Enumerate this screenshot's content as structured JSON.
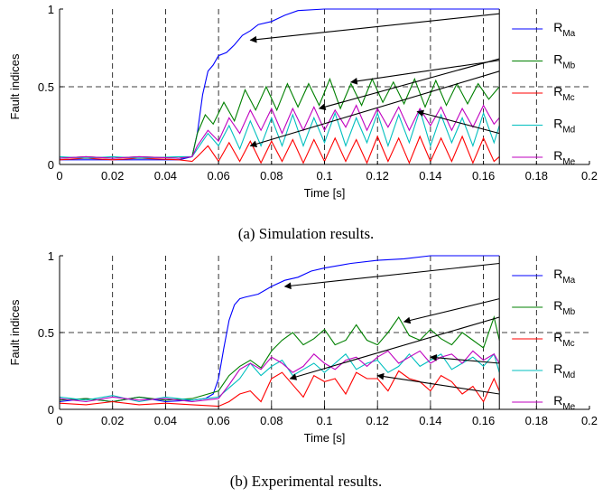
{
  "chart_data": [
    {
      "type": "line",
      "caption": "(a) Simulation results.",
      "xlabel": "Time [s]",
      "ylabel": "Fault indices",
      "xlim": [
        0,
        0.2
      ],
      "ylim": [
        0,
        1
      ],
      "xticks": [
        "0",
        "0.02",
        "0.04",
        "0.06",
        "0.08",
        "0.1",
        "0.12",
        "0.14",
        "0.16",
        "0.18",
        "0.2"
      ],
      "yticks": [
        "0",
        "0.5",
        "1"
      ],
      "grid": "dashed",
      "legend_position": "right",
      "data_end_x": 0.166,
      "series": [
        {
          "name": "R",
          "sub": "Ma",
          "color": "#0000ff",
          "x": [
            0,
            0.01,
            0.02,
            0.03,
            0.045,
            0.05,
            0.052,
            0.054,
            0.056,
            0.058,
            0.06,
            0.063,
            0.066,
            0.069,
            0.072,
            0.075,
            0.08,
            0.085,
            0.09,
            0.1,
            0.166
          ],
          "y": [
            0.03,
            0.03,
            0.03,
            0.03,
            0.03,
            0.05,
            0.2,
            0.45,
            0.6,
            0.64,
            0.7,
            0.72,
            0.77,
            0.83,
            0.86,
            0.9,
            0.92,
            0.96,
            0.99,
            1.0,
            1.0
          ]
        },
        {
          "name": "R",
          "sub": "Mb",
          "color": "#008000",
          "x": [
            0,
            0.01,
            0.02,
            0.03,
            0.045,
            0.05,
            0.052,
            0.055,
            0.058,
            0.062,
            0.066,
            0.07,
            0.074,
            0.078,
            0.082,
            0.086,
            0.09,
            0.094,
            0.098,
            0.102,
            0.106,
            0.11,
            0.114,
            0.118,
            0.122,
            0.126,
            0.13,
            0.134,
            0.138,
            0.142,
            0.146,
            0.15,
            0.154,
            0.158,
            0.162,
            0.166
          ],
          "y": [
            0.04,
            0.05,
            0.04,
            0.05,
            0.04,
            0.05,
            0.2,
            0.32,
            0.26,
            0.4,
            0.28,
            0.48,
            0.35,
            0.5,
            0.35,
            0.52,
            0.37,
            0.52,
            0.38,
            0.55,
            0.36,
            0.52,
            0.38,
            0.55,
            0.4,
            0.53,
            0.39,
            0.55,
            0.37,
            0.54,
            0.38,
            0.52,
            0.39,
            0.52,
            0.42,
            0.5
          ]
        },
        {
          "name": "R",
          "sub": "Mc",
          "color": "#ff0000",
          "x": [
            0,
            0.01,
            0.02,
            0.03,
            0.045,
            0.05,
            0.052,
            0.056,
            0.06,
            0.064,
            0.068,
            0.072,
            0.076,
            0.08,
            0.084,
            0.088,
            0.092,
            0.096,
            0.1,
            0.104,
            0.108,
            0.112,
            0.116,
            0.12,
            0.124,
            0.128,
            0.132,
            0.136,
            0.14,
            0.144,
            0.148,
            0.152,
            0.156,
            0.16,
            0.164,
            0.166
          ],
          "y": [
            0.03,
            0.04,
            0.03,
            0.04,
            0.03,
            0.02,
            0.05,
            0.12,
            0.02,
            0.14,
            0.02,
            0.15,
            0.01,
            0.15,
            0.02,
            0.16,
            0.01,
            0.16,
            0.02,
            0.17,
            0.02,
            0.16,
            0.01,
            0.18,
            0.02,
            0.17,
            0.01,
            0.18,
            0.02,
            0.17,
            0.02,
            0.18,
            0.01,
            0.17,
            0.02,
            0.05
          ]
        },
        {
          "name": "R",
          "sub": "Md",
          "color": "#00bfbf",
          "x": [
            0,
            0.01,
            0.02,
            0.03,
            0.045,
            0.05,
            0.052,
            0.056,
            0.06,
            0.064,
            0.068,
            0.072,
            0.076,
            0.08,
            0.084,
            0.088,
            0.092,
            0.096,
            0.1,
            0.104,
            0.108,
            0.112,
            0.116,
            0.12,
            0.124,
            0.128,
            0.132,
            0.136,
            0.14,
            0.144,
            0.148,
            0.152,
            0.156,
            0.16,
            0.164,
            0.166
          ],
          "y": [
            0.05,
            0.04,
            0.05,
            0.04,
            0.05,
            0.05,
            0.1,
            0.2,
            0.12,
            0.25,
            0.1,
            0.28,
            0.12,
            0.3,
            0.12,
            0.32,
            0.12,
            0.3,
            0.14,
            0.33,
            0.12,
            0.3,
            0.14,
            0.33,
            0.12,
            0.32,
            0.14,
            0.35,
            0.12,
            0.32,
            0.14,
            0.3,
            0.12,
            0.33,
            0.14,
            0.25
          ]
        },
        {
          "name": "R",
          "sub": "Me",
          "color": "#bf00bf",
          "x": [
            0,
            0.01,
            0.02,
            0.03,
            0.045,
            0.05,
            0.052,
            0.056,
            0.06,
            0.064,
            0.068,
            0.072,
            0.076,
            0.08,
            0.084,
            0.088,
            0.092,
            0.096,
            0.1,
            0.104,
            0.108,
            0.112,
            0.116,
            0.12,
            0.124,
            0.128,
            0.132,
            0.136,
            0.14,
            0.144,
            0.148,
            0.152,
            0.156,
            0.16,
            0.164,
            0.166
          ],
          "y": [
            0.04,
            0.05,
            0.04,
            0.05,
            0.04,
            0.05,
            0.12,
            0.22,
            0.15,
            0.3,
            0.2,
            0.35,
            0.22,
            0.36,
            0.2,
            0.36,
            0.22,
            0.37,
            0.22,
            0.35,
            0.24,
            0.38,
            0.22,
            0.36,
            0.24,
            0.37,
            0.22,
            0.36,
            0.25,
            0.37,
            0.22,
            0.36,
            0.24,
            0.38,
            0.26,
            0.3
          ]
        }
      ],
      "annotations": [
        {
          "from": [
            0.166,
            0.97
          ],
          "to": [
            0.072,
            0.8
          ]
        },
        {
          "from": [
            0.166,
            0.67
          ],
          "to": [
            0.11,
            0.53
          ]
        },
        {
          "from": [
            0.166,
            0.6
          ],
          "to": [
            0.072,
            0.12
          ]
        },
        {
          "from": [
            0.166,
            0.2
          ],
          "to": [
            0.135,
            0.34
          ]
        },
        {
          "from": [
            0.166,
            0.68
          ],
          "to": [
            0.098,
            0.36
          ]
        }
      ]
    },
    {
      "type": "line",
      "caption": "(b) Experimental results.",
      "xlabel": "Time [s]",
      "ylabel": "Fault indices",
      "xlim": [
        0,
        0.2
      ],
      "ylim": [
        0,
        1
      ],
      "xticks": [
        "0",
        "0.02",
        "0.04",
        "0.06",
        "0.08",
        "0.1",
        "0.12",
        "0.14",
        "0.16",
        "0.18",
        "0.2"
      ],
      "yticks": [
        "0",
        "0.5",
        "1"
      ],
      "grid": "dashed",
      "legend_position": "right",
      "data_end_x": 0.166,
      "series": [
        {
          "name": "R",
          "sub": "Ma",
          "color": "#0000ff",
          "x": [
            0,
            0.01,
            0.02,
            0.03,
            0.04,
            0.05,
            0.055,
            0.058,
            0.06,
            0.062,
            0.064,
            0.066,
            0.068,
            0.07,
            0.075,
            0.08,
            0.085,
            0.09,
            0.095,
            0.1,
            0.11,
            0.12,
            0.13,
            0.14,
            0.166
          ],
          "y": [
            0.05,
            0.07,
            0.05,
            0.08,
            0.05,
            0.06,
            0.07,
            0.1,
            0.2,
            0.4,
            0.58,
            0.68,
            0.72,
            0.73,
            0.75,
            0.8,
            0.84,
            0.86,
            0.9,
            0.92,
            0.95,
            0.97,
            0.98,
            1.0,
            1.0
          ]
        },
        {
          "name": "R",
          "sub": "Mb",
          "color": "#008000",
          "x": [
            0,
            0.01,
            0.02,
            0.03,
            0.04,
            0.05,
            0.06,
            0.064,
            0.068,
            0.072,
            0.076,
            0.08,
            0.084,
            0.088,
            0.092,
            0.096,
            0.1,
            0.104,
            0.108,
            0.112,
            0.116,
            0.12,
            0.124,
            0.128,
            0.132,
            0.136,
            0.14,
            0.144,
            0.148,
            0.152,
            0.156,
            0.16,
            0.164,
            0.166
          ],
          "y": [
            0.06,
            0.07,
            0.05,
            0.08,
            0.06,
            0.07,
            0.12,
            0.22,
            0.28,
            0.32,
            0.27,
            0.38,
            0.45,
            0.5,
            0.42,
            0.46,
            0.52,
            0.42,
            0.45,
            0.55,
            0.45,
            0.42,
            0.5,
            0.6,
            0.48,
            0.45,
            0.52,
            0.46,
            0.42,
            0.5,
            0.45,
            0.4,
            0.6,
            0.45
          ]
        },
        {
          "name": "R",
          "sub": "Mc",
          "color": "#ff0000",
          "x": [
            0,
            0.01,
            0.02,
            0.03,
            0.04,
            0.05,
            0.06,
            0.064,
            0.068,
            0.072,
            0.076,
            0.08,
            0.084,
            0.088,
            0.092,
            0.096,
            0.1,
            0.104,
            0.108,
            0.112,
            0.116,
            0.12,
            0.124,
            0.128,
            0.132,
            0.136,
            0.14,
            0.144,
            0.148,
            0.152,
            0.156,
            0.16,
            0.164,
            0.166
          ],
          "y": [
            0.04,
            0.03,
            0.05,
            0.03,
            0.04,
            0.03,
            0.02,
            0.05,
            0.1,
            0.12,
            0.05,
            0.2,
            0.24,
            0.16,
            0.08,
            0.22,
            0.18,
            0.2,
            0.1,
            0.24,
            0.2,
            0.2,
            0.12,
            0.25,
            0.2,
            0.18,
            0.12,
            0.22,
            0.18,
            0.1,
            0.15,
            0.05,
            0.2,
            0.12
          ]
        },
        {
          "name": "R",
          "sub": "Md",
          "color": "#00bfbf",
          "x": [
            0,
            0.01,
            0.02,
            0.03,
            0.04,
            0.05,
            0.06,
            0.064,
            0.068,
            0.072,
            0.076,
            0.08,
            0.084,
            0.088,
            0.092,
            0.096,
            0.1,
            0.104,
            0.108,
            0.112,
            0.116,
            0.12,
            0.124,
            0.128,
            0.132,
            0.136,
            0.14,
            0.144,
            0.148,
            0.152,
            0.156,
            0.16,
            0.164,
            0.166
          ],
          "y": [
            0.08,
            0.06,
            0.09,
            0.05,
            0.08,
            0.06,
            0.08,
            0.14,
            0.2,
            0.3,
            0.22,
            0.28,
            0.32,
            0.22,
            0.26,
            0.3,
            0.24,
            0.3,
            0.36,
            0.26,
            0.3,
            0.32,
            0.24,
            0.28,
            0.36,
            0.28,
            0.32,
            0.36,
            0.26,
            0.3,
            0.34,
            0.28,
            0.36,
            0.24
          ]
        },
        {
          "name": "R",
          "sub": "Me",
          "color": "#bf00bf",
          "x": [
            0,
            0.01,
            0.02,
            0.03,
            0.04,
            0.05,
            0.06,
            0.064,
            0.068,
            0.072,
            0.076,
            0.08,
            0.084,
            0.088,
            0.092,
            0.096,
            0.1,
            0.104,
            0.108,
            0.112,
            0.116,
            0.12,
            0.124,
            0.128,
            0.132,
            0.136,
            0.14,
            0.144,
            0.148,
            0.152,
            0.156,
            0.16,
            0.164,
            0.166
          ],
          "y": [
            0.07,
            0.05,
            0.08,
            0.06,
            0.07,
            0.05,
            0.07,
            0.16,
            0.26,
            0.3,
            0.26,
            0.34,
            0.3,
            0.24,
            0.28,
            0.36,
            0.3,
            0.26,
            0.32,
            0.34,
            0.28,
            0.34,
            0.38,
            0.3,
            0.34,
            0.38,
            0.3,
            0.34,
            0.36,
            0.3,
            0.38,
            0.32,
            0.36,
            0.3
          ]
        }
      ],
      "annotations": [
        {
          "from": [
            0.166,
            0.95
          ],
          "to": [
            0.085,
            0.8
          ]
        },
        {
          "from": [
            0.166,
            0.72
          ],
          "to": [
            0.13,
            0.57
          ]
        },
        {
          "from": [
            0.166,
            0.6
          ],
          "to": [
            0.087,
            0.2
          ]
        },
        {
          "from": [
            0.166,
            0.3
          ],
          "to": [
            0.14,
            0.34
          ]
        },
        {
          "from": [
            0.166,
            0.1
          ],
          "to": [
            0.12,
            0.22
          ]
        }
      ]
    }
  ]
}
